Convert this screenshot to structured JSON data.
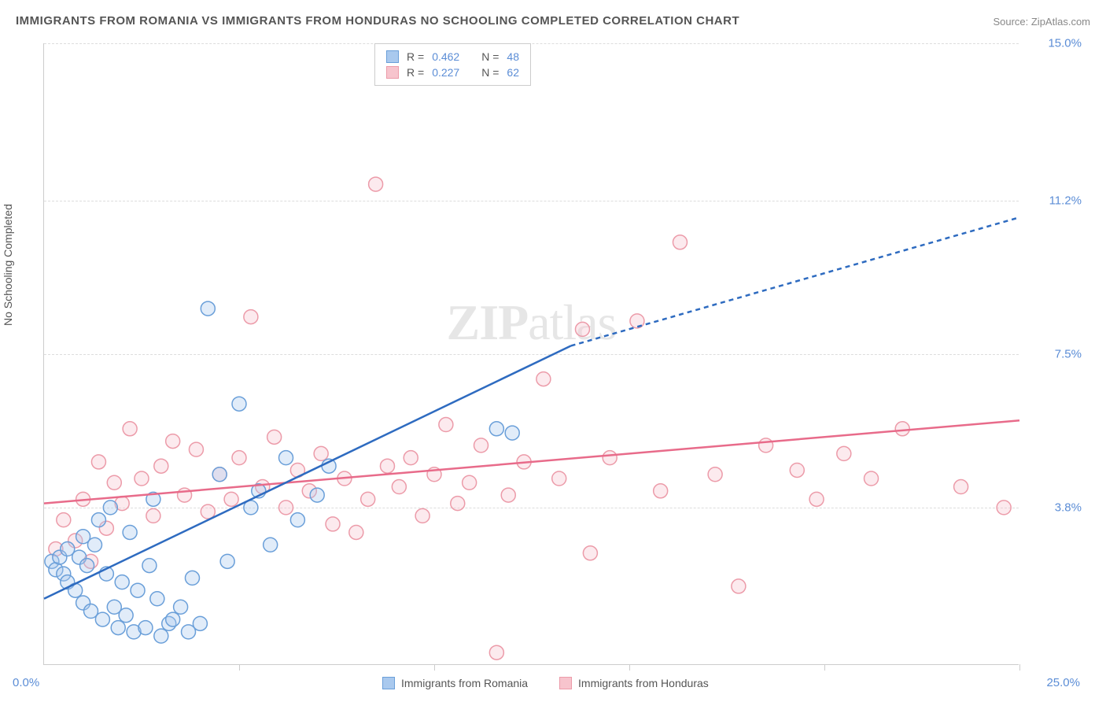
{
  "title": "IMMIGRANTS FROM ROMANIA VS IMMIGRANTS FROM HONDURAS NO SCHOOLING COMPLETED CORRELATION CHART",
  "source": "Source: ZipAtlas.com",
  "ylabel": "No Schooling Completed",
  "watermark_bold": "ZIP",
  "watermark_rest": "atlas",
  "chart": {
    "type": "scatter-correlation",
    "background_color": "#ffffff",
    "grid_color": "#dddddd",
    "axis_color": "#cccccc",
    "tick_color": "#5b8dd6",
    "label_color": "#555555",
    "title_color": "#555555",
    "title_fontsize": 15,
    "label_fontsize": 14,
    "tick_fontsize": 15,
    "xlim": [
      0,
      25
    ],
    "ylim": [
      0,
      15
    ],
    "xtick_left": "0.0%",
    "xtick_right": "25.0%",
    "xtick_positions_minor": [
      5,
      10,
      15,
      20,
      25
    ],
    "yticks": [
      {
        "value": 3.8,
        "label": "3.8%"
      },
      {
        "value": 7.5,
        "label": "7.5%"
      },
      {
        "value": 11.2,
        "label": "11.2%"
      },
      {
        "value": 15.0,
        "label": "15.0%"
      }
    ],
    "marker_radius": 9,
    "marker_stroke_width": 1.5,
    "marker_fill_opacity": 0.35,
    "line_width": 2.5,
    "dash_pattern": "6 5"
  },
  "series": {
    "romania": {
      "label": "Immigrants from Romania",
      "color_fill": "#a9c9ee",
      "color_stroke": "#6a9fd9",
      "line_color": "#2e6bc0",
      "R": "0.462",
      "N": "48",
      "trend": {
        "x1": 0.0,
        "y1": 1.6,
        "x2": 13.5,
        "y2": 7.7,
        "x2_ext": 25.0,
        "y2_ext": 10.8
      },
      "points": [
        [
          0.2,
          2.5
        ],
        [
          0.3,
          2.3
        ],
        [
          0.4,
          2.6
        ],
        [
          0.5,
          2.2
        ],
        [
          0.6,
          2.8
        ],
        [
          0.6,
          2.0
        ],
        [
          0.8,
          1.8
        ],
        [
          0.9,
          2.6
        ],
        [
          1.0,
          3.1
        ],
        [
          1.0,
          1.5
        ],
        [
          1.1,
          2.4
        ],
        [
          1.2,
          1.3
        ],
        [
          1.3,
          2.9
        ],
        [
          1.4,
          3.5
        ],
        [
          1.5,
          1.1
        ],
        [
          1.6,
          2.2
        ],
        [
          1.7,
          3.8
        ],
        [
          1.8,
          1.4
        ],
        [
          1.9,
          0.9
        ],
        [
          2.0,
          2.0
        ],
        [
          2.1,
          1.2
        ],
        [
          2.2,
          3.2
        ],
        [
          2.3,
          0.8
        ],
        [
          2.4,
          1.8
        ],
        [
          2.6,
          0.9
        ],
        [
          2.7,
          2.4
        ],
        [
          2.8,
          4.0
        ],
        [
          2.9,
          1.6
        ],
        [
          3.0,
          0.7
        ],
        [
          3.2,
          1.0
        ],
        [
          3.3,
          1.1
        ],
        [
          3.5,
          1.4
        ],
        [
          3.7,
          0.8
        ],
        [
          3.8,
          2.1
        ],
        [
          4.0,
          1.0
        ],
        [
          4.2,
          8.6
        ],
        [
          4.5,
          4.6
        ],
        [
          4.7,
          2.5
        ],
        [
          5.0,
          6.3
        ],
        [
          5.3,
          3.8
        ],
        [
          5.5,
          4.2
        ],
        [
          5.8,
          2.9
        ],
        [
          6.2,
          5.0
        ],
        [
          6.5,
          3.5
        ],
        [
          7.0,
          4.1
        ],
        [
          7.3,
          4.8
        ],
        [
          11.6,
          5.7
        ],
        [
          12.0,
          5.6
        ]
      ]
    },
    "honduras": {
      "label": "Immigrants from Honduras",
      "color_fill": "#f7c4cd",
      "color_stroke": "#ec9ba9",
      "line_color": "#e86b8a",
      "R": "0.227",
      "N": "62",
      "trend": {
        "x1": 0.0,
        "y1": 3.9,
        "x2": 25.0,
        "y2": 5.9
      },
      "points": [
        [
          0.3,
          2.8
        ],
        [
          0.5,
          3.5
        ],
        [
          0.8,
          3.0
        ],
        [
          1.0,
          4.0
        ],
        [
          1.2,
          2.5
        ],
        [
          1.4,
          4.9
        ],
        [
          1.6,
          3.3
        ],
        [
          1.8,
          4.4
        ],
        [
          2.0,
          3.9
        ],
        [
          2.2,
          5.7
        ],
        [
          2.5,
          4.5
        ],
        [
          2.8,
          3.6
        ],
        [
          3.0,
          4.8
        ],
        [
          3.3,
          5.4
        ],
        [
          3.6,
          4.1
        ],
        [
          3.9,
          5.2
        ],
        [
          4.2,
          3.7
        ],
        [
          4.5,
          4.6
        ],
        [
          4.8,
          4.0
        ],
        [
          5.0,
          5.0
        ],
        [
          5.3,
          8.4
        ],
        [
          5.6,
          4.3
        ],
        [
          5.9,
          5.5
        ],
        [
          6.2,
          3.8
        ],
        [
          6.5,
          4.7
        ],
        [
          6.8,
          4.2
        ],
        [
          7.1,
          5.1
        ],
        [
          7.4,
          3.4
        ],
        [
          7.7,
          4.5
        ],
        [
          8.0,
          3.2
        ],
        [
          8.3,
          4.0
        ],
        [
          8.5,
          11.6
        ],
        [
          8.8,
          4.8
        ],
        [
          9.1,
          4.3
        ],
        [
          9.4,
          5.0
        ],
        [
          9.7,
          3.6
        ],
        [
          10.0,
          4.6
        ],
        [
          10.3,
          5.8
        ],
        [
          10.6,
          3.9
        ],
        [
          10.9,
          4.4
        ],
        [
          11.2,
          5.3
        ],
        [
          11.6,
          0.3
        ],
        [
          11.9,
          4.1
        ],
        [
          12.3,
          4.9
        ],
        [
          12.8,
          6.9
        ],
        [
          13.2,
          4.5
        ],
        [
          13.8,
          8.1
        ],
        [
          14.0,
          2.7
        ],
        [
          14.5,
          5.0
        ],
        [
          15.2,
          8.3
        ],
        [
          15.8,
          4.2
        ],
        [
          16.3,
          10.2
        ],
        [
          17.2,
          4.6
        ],
        [
          17.8,
          1.9
        ],
        [
          18.5,
          5.3
        ],
        [
          19.3,
          4.7
        ],
        [
          19.8,
          4.0
        ],
        [
          20.5,
          5.1
        ],
        [
          21.2,
          4.5
        ],
        [
          22.0,
          5.7
        ],
        [
          23.5,
          4.3
        ],
        [
          24.6,
          3.8
        ]
      ]
    }
  },
  "legend_top": {
    "r_label": "R =",
    "n_label": "N ="
  }
}
